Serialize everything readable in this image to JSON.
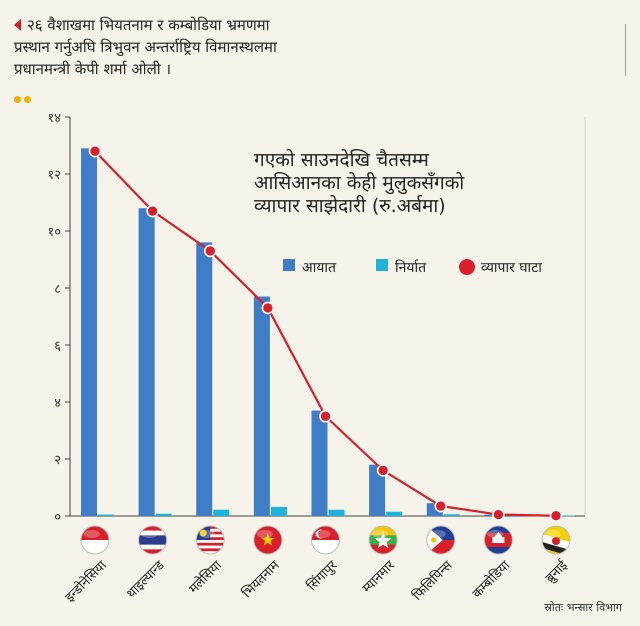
{
  "caption": {
    "lines": [
      "२६ वैशाखमा भियतनाम र कम्बोडिया भ्रमणमा",
      "प्रस्थान गर्नुअघि त्रिभुवन अन्तर्राष्ट्रिय विमानस्थलमा",
      "प्रधानमन्त्री केपी शर्मा ओली ।"
    ]
  },
  "source": "स्रोतः भन्सार विभाग",
  "colors": {
    "import": "#3f7dc7",
    "export": "#1fb3d9",
    "deficit": "#d9202a",
    "axis": "#444444",
    "grid": "#cfcfcf"
  },
  "chart_data": {
    "type": "bar",
    "title_lines": [
      "गएको साउनदेखि चैतसम्म",
      "आसिआनका केही मुलुकसँगको",
      "व्यापार साझेदारी (रु.अर्बमा)"
    ],
    "legend_placement": "center-right",
    "categories": [
      "इन्डोनेसिया",
      "थाइल्यान्ड",
      "मलेसिया",
      "भियतनाम",
      "सिंगापुर",
      "म्यानमार",
      "फिलिपिन्स",
      "कम्बोडिया",
      "ब्रुनाई"
    ],
    "flag_icons": [
      "indonesia-flag-icon",
      "thailand-flag-icon",
      "malaysia-flag-icon",
      "vietnam-flag-icon",
      "singapore-flag-icon",
      "myanmar-flag-icon",
      "philippines-flag-icon",
      "cambodia-flag-icon",
      "brunei-flag-icon"
    ],
    "series": [
      {
        "name": "आयात",
        "type": "bar",
        "values": [
          12.9,
          10.8,
          9.6,
          7.7,
          3.7,
          1.8,
          0.45,
          0.05,
          0.03
        ]
      },
      {
        "name": "निर्यात",
        "type": "bar",
        "values": [
          0.05,
          0.08,
          0.22,
          0.32,
          0.22,
          0.15,
          0.06,
          0.0,
          0.02
        ]
      },
      {
        "name": "व्यापार घाटा",
        "type": "line",
        "values": [
          12.8,
          10.7,
          9.3,
          7.3,
          3.5,
          1.6,
          0.35,
          0.05,
          0.01
        ]
      }
    ],
    "ylim": [
      0,
      14
    ],
    "yticks": [
      "०",
      "२",
      "४",
      "६",
      "८",
      "१०",
      "१२",
      "१४"
    ],
    "ytick_values": [
      0,
      2,
      4,
      6,
      8,
      10,
      12,
      14
    ],
    "grid": false
  }
}
